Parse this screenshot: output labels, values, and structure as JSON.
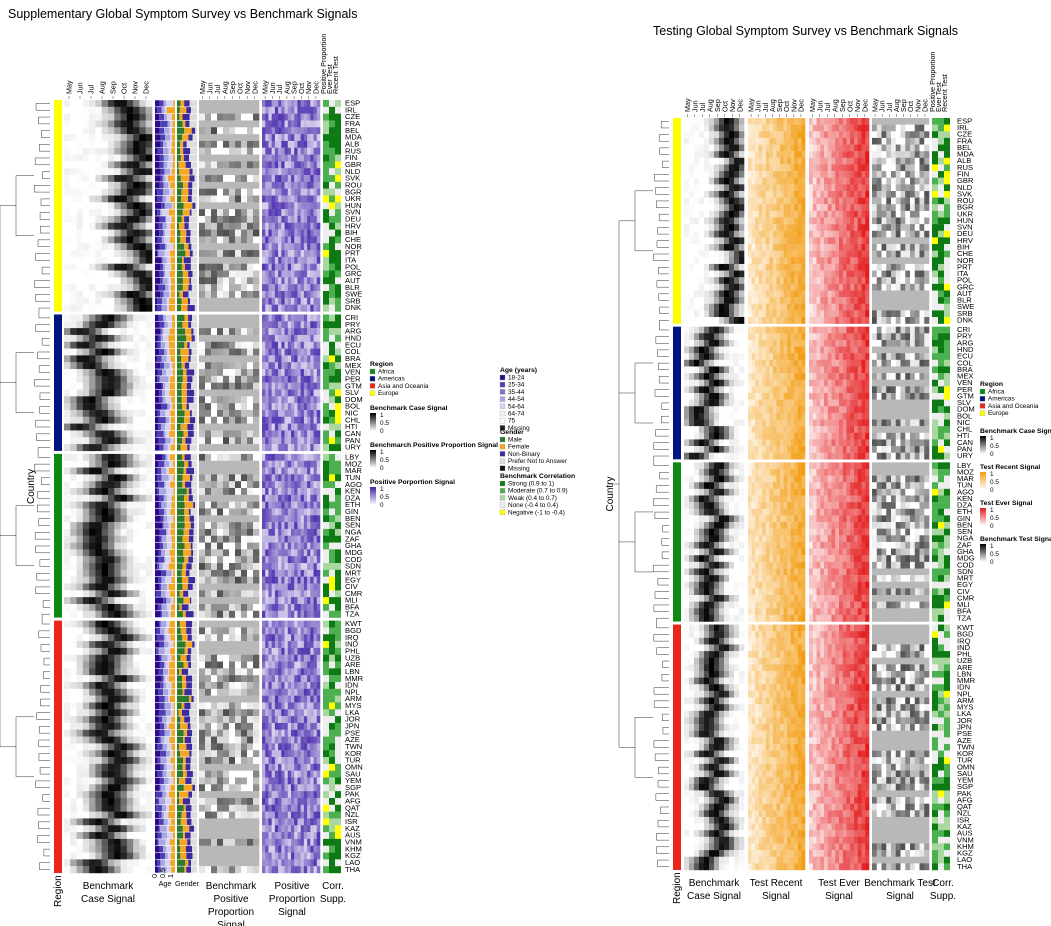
{
  "months": [
    "May",
    "Jun",
    "Jul",
    "Aug",
    "Sep",
    "Oct",
    "Nov",
    "Dec"
  ],
  "corr_columns": [
    "Positive Proportion",
    "Ever Test",
    "Recent Test"
  ],
  "groups": [
    {
      "region": "Europe",
      "color": "#FFFF00",
      "countries": [
        "ESP",
        "IRL",
        "CZE",
        "FRA",
        "BEL",
        "MDA",
        "ALB",
        "RUS",
        "FIN",
        "GBR",
        "NLD",
        "SVK",
        "ROU",
        "BGR",
        "UKR",
        "HUN",
        "SVN",
        "DEU",
        "HRV",
        "BIH",
        "CHE",
        "NOR",
        "PRT",
        "ITA",
        "POL",
        "GRC",
        "AUT",
        "BLR",
        "SWE",
        "SRB",
        "DNK"
      ]
    },
    {
      "region": "Americas",
      "color": "#00137F",
      "countries": [
        "CRI",
        "PRY",
        "ARG",
        "HND",
        "ECU",
        "COL",
        "BRA",
        "MEX",
        "VEN",
        "PER",
        "GTM",
        "SLV",
        "DOM",
        "BOL",
        "NIC",
        "CHL",
        "HTI",
        "CAN",
        "PAN",
        "URY"
      ]
    },
    {
      "region": "Africa",
      "color": "#0E8A14",
      "countries": [
        "LBY",
        "MOZ",
        "MAR",
        "TUN",
        "AGO",
        "KEN",
        "DZA",
        "ETH",
        "GIN",
        "BEN",
        "SEN",
        "NGA",
        "ZAF",
        "GHA",
        "MDG",
        "COD",
        "SDN",
        "MRT",
        "EGY",
        "CIV",
        "CMR",
        "MLI",
        "BFA",
        "TZA"
      ]
    },
    {
      "region": "Asia and Oceania",
      "color": "#E8261A",
      "countries": [
        "KWT",
        "BGD",
        "IRQ",
        "IND",
        "PHL",
        "UZB",
        "ARE",
        "LBN",
        "MMR",
        "IDN",
        "NPL",
        "ARM",
        "MYS",
        "LKA",
        "JOR",
        "JPN",
        "PSE",
        "AZE",
        "TWN",
        "KOR",
        "TUR",
        "OMN",
        "SAU",
        "YEM",
        "SGP",
        "PAK",
        "AFG",
        "QAT",
        "NZL",
        "ISR",
        "KAZ",
        "AUS",
        "VNM",
        "KHM",
        "KGZ",
        "LAO",
        "THA"
      ]
    }
  ],
  "left_panel": {
    "title": "Supplementary Global Symptom Survey vs Benchmark Signals",
    "y_label": "Country",
    "region_label": "Region",
    "age_label": "Age",
    "gender_label": "Gender",
    "bar_ticks": [
      "0",
      "0.5",
      "1"
    ],
    "bottom_labels": [
      {
        "key": "case",
        "lines": [
          "Benchmark",
          "Case Signal"
        ]
      },
      {
        "key": "pp",
        "lines": [
          "Benchmark",
          "Positive",
          "Proportion",
          "Signal"
        ]
      },
      {
        "key": "pos",
        "lines": [
          "Positive",
          "Proportion",
          "Signal"
        ]
      },
      {
        "key": "corr",
        "lines": [
          "Corr.",
          "Supp."
        ]
      }
    ]
  },
  "right_panel": {
    "title": "Testing Global Symptom Survey vs Benchmark Signals",
    "y_label": "Country",
    "region_label": "Region",
    "bottom_labels": [
      {
        "key": "case",
        "lines": [
          "Benchmark",
          "Case Signal"
        ]
      },
      {
        "key": "recent",
        "lines": [
          "Test Recent",
          "Signal"
        ]
      },
      {
        "key": "ever",
        "lines": [
          "Test Ever",
          "Signal"
        ]
      },
      {
        "key": "test",
        "lines": [
          "Benchmark Test",
          "Signal"
        ]
      },
      {
        "key": "corr",
        "lines": [
          "Corr.",
          "Supp."
        ]
      }
    ]
  },
  "legends_left": {
    "region": {
      "title": "Region",
      "items": [
        {
          "label": "Africa",
          "color": "#0E8A14"
        },
        {
          "label": "Americas",
          "color": "#00137F"
        },
        {
          "label": "Asia and Oceania",
          "color": "#E8261A"
        },
        {
          "label": "Europe",
          "color": "#FFFF00"
        }
      ]
    },
    "scales": [
      {
        "title": "Benchmark Case Signal",
        "ticks": [
          "1",
          "0.5",
          "0"
        ],
        "from": "#ffffff",
        "to": "#000000"
      },
      {
        "title": "Benchmarch Positive Proportion Signal",
        "ticks": [
          "1",
          "0.5",
          "0"
        ],
        "from": "#ffffff",
        "to": "#000000"
      },
      {
        "title": "Positive Porportion Signal",
        "ticks": [
          "1",
          "0.5",
          "0"
        ],
        "from": "#ffffff",
        "to": "#3F1FA8"
      }
    ],
    "age": {
      "title": "Age (years)",
      "items": [
        {
          "label": "18-24",
          "color": "#2B0B8A"
        },
        {
          "label": "25-34",
          "color": "#4E3FB5"
        },
        {
          "label": "35-44",
          "color": "#7B72CF"
        },
        {
          "label": "44-54",
          "color": "#A9A5E2"
        },
        {
          "label": "54-64",
          "color": "#D6D4F1"
        },
        {
          "label": "64-74",
          "color": "#F5F4FB"
        },
        {
          "label": "75",
          "color": "#FFFFFF"
        },
        {
          "label": "Missing",
          "color": "#222222"
        }
      ]
    },
    "gender": {
      "title": "Gender",
      "items": [
        {
          "label": "Male",
          "color": "#2D7A2D"
        },
        {
          "label": "Female",
          "color": "#F5A623"
        },
        {
          "label": "Non-Binary",
          "color": "#3D2A9E"
        },
        {
          "label": "Prefer Not to Answer",
          "color": "#DDDDDD"
        },
        {
          "label": "Missing",
          "color": "#111111"
        }
      ]
    },
    "corr": {
      "title": "Benchmark Correlation",
      "items": [
        {
          "label": "Strong (0.9 to 1)",
          "color": "#0E7A14"
        },
        {
          "label": "Moderate (0.7 to 0.9)",
          "color": "#4CAF50"
        },
        {
          "label": "Weak (0.4 to 0.7)",
          "color": "#A8D8A0"
        },
        {
          "label": "None (-0.4 to 0.4)",
          "color": "#EEEEEE"
        },
        {
          "label": "Negative (-1 to -0.4)",
          "color": "#FFFF00"
        }
      ]
    }
  },
  "legends_right": {
    "region": {
      "title": "Region",
      "items": [
        {
          "label": "Africa",
          "color": "#0E8A14"
        },
        {
          "label": "Americas",
          "color": "#00137F"
        },
        {
          "label": "Asia and Oceania",
          "color": "#E8261A"
        },
        {
          "label": "Europe",
          "color": "#FFFF00"
        }
      ]
    },
    "scales": [
      {
        "title": "Benchmark Case Sign",
        "ticks": [
          "1",
          "0.5",
          "0"
        ],
        "from": "#ffffff",
        "to": "#000000"
      },
      {
        "title": "Test Recent Signal",
        "ticks": [
          "1",
          "0.5",
          "0"
        ],
        "from": "#ffffff",
        "to": "#F39C12"
      },
      {
        "title": "Test Ever Signal",
        "ticks": [
          "1",
          "0.5",
          "0"
        ],
        "from": "#ffffff",
        "to": "#E41A1C"
      },
      {
        "title": "Benchmark Test Signal",
        "ticks": [
          "1",
          "0.5",
          "0"
        ],
        "from": "#ffffff",
        "to": "#000000"
      }
    ]
  },
  "chart_data": [
    {
      "type": "heatmap",
      "title": "Supplementary Global Symptom Survey vs Benchmark Signals",
      "x": [
        "May",
        "Jun",
        "Jul",
        "Aug",
        "Sep",
        "Oct",
        "Nov",
        "Dec"
      ],
      "series": [
        {
          "name": "Benchmark Case Signal"
        },
        {
          "name": "Benchmark Positive Proportion Signal"
        },
        {
          "name": "Positive Proportion Signal"
        }
      ],
      "ylabel": "Country",
      "value_range": [
        0,
        1
      ]
    },
    {
      "type": "heatmap",
      "title": "Testing Global Symptom Survey vs Benchmark Signals",
      "x": [
        "May",
        "Jun",
        "Jul",
        "Aug",
        "Sep",
        "Oct",
        "Nov",
        "Dec"
      ],
      "series": [
        {
          "name": "Benchmark Case Signal"
        },
        {
          "name": "Test Recent Signal"
        },
        {
          "name": "Test Ever Signal"
        },
        {
          "name": "Benchmark Test Signal"
        }
      ],
      "ylabel": "Country",
      "value_range": [
        0,
        1
      ]
    }
  ]
}
